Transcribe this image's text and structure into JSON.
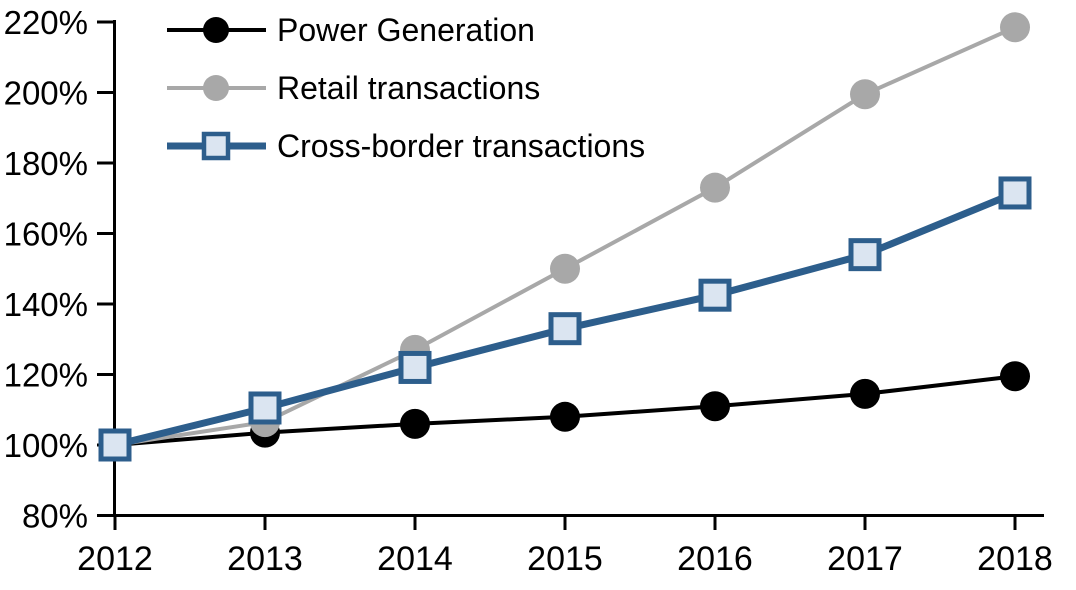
{
  "chart_data": {
    "type": "line",
    "title": "",
    "xlabel": "",
    "ylabel": "",
    "categories": [
      "2012",
      "2013",
      "2014",
      "2015",
      "2016",
      "2017",
      "2018"
    ],
    "series": [
      {
        "name": "Power Generation",
        "marker": "circle",
        "color": "#000000",
        "marker_fill": "#000000",
        "values": [
          100,
          103.5,
          106,
          108,
          111,
          114.5,
          119.5
        ]
      },
      {
        "name": "Retail transactions",
        "marker": "circle",
        "color": "#A8A8A8",
        "marker_fill": "#A8A8A8",
        "values": [
          100,
          106.5,
          127,
          150,
          173,
          199.5,
          218.5
        ]
      },
      {
        "name": "Cross-border transactions",
        "marker": "square",
        "color": "#2D5E8C",
        "marker_fill": "#DBE5F1",
        "values": [
          100,
          110.5,
          122,
          133,
          142.5,
          154,
          171.5
        ]
      }
    ],
    "ylim": [
      80,
      220
    ],
    "y_ticks": [
      80,
      100,
      120,
      140,
      160,
      180,
      200,
      220
    ],
    "y_tick_labels": [
      "80%",
      "100%",
      "120%",
      "140%",
      "160%",
      "180%",
      "200%",
      "220%"
    ],
    "x_tick_labels": [
      "2012",
      "2013",
      "2014",
      "2015",
      "2016",
      "2017",
      "2018"
    ],
    "grid": false,
    "legend_position": "top-left",
    "axis_color": "#000000",
    "background_color": "#FFFFFF"
  }
}
